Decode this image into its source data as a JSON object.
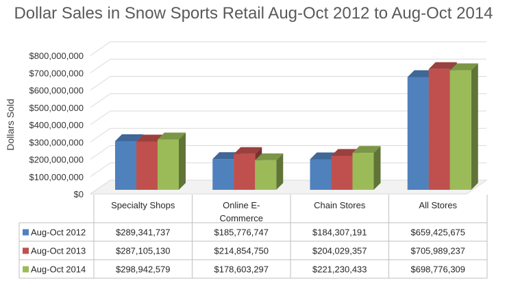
{
  "chart_data": {
    "type": "bar",
    "title": "Dollar Sales in Snow Sports Retail Aug-Oct 2012 to Aug-Oct 2014",
    "ylabel": "Dollars Sold",
    "xlabel": "",
    "ylim": [
      0,
      800000000
    ],
    "yticks": [
      {
        "value": 0,
        "label": "$0"
      },
      {
        "value": 100000000,
        "label": "$100,000,000"
      },
      {
        "value": 200000000,
        "label": "$200,000,000"
      },
      {
        "value": 300000000,
        "label": "$300,000,000"
      },
      {
        "value": 400000000,
        "label": "$400,000,000"
      },
      {
        "value": 500000000,
        "label": "$500,000,000"
      },
      {
        "value": 600000000,
        "label": "$600,000,000"
      },
      {
        "value": 700000000,
        "label": "$700,000,000"
      },
      {
        "value": 800000000,
        "label": "$800,000,000"
      }
    ],
    "grid": true,
    "legend": "data-table",
    "categories": [
      [
        "Specialty Shops"
      ],
      [
        "Online E-",
        "Commerce"
      ],
      [
        "Chain Stores"
      ],
      [
        "All Stores"
      ]
    ],
    "series": [
      {
        "name": "Aug-Oct 2012",
        "color": "#4f81bd",
        "values": [
          289341737,
          185776747,
          184307191,
          659425675
        ],
        "labels": [
          "$289,341,737",
          "$185,776,747",
          "$184,307,191",
          "$659,425,675"
        ]
      },
      {
        "name": "Aug-Oct 2013",
        "color": "#c0504d",
        "values": [
          287105130,
          214854750,
          204029357,
          705989237
        ],
        "labels": [
          "$287,105,130",
          "$214,854,750",
          "$204,029,357",
          "$705,989,237"
        ]
      },
      {
        "name": "Aug-Oct 2014",
        "color": "#9bbb59",
        "values": [
          298942579,
          178603297,
          221230433,
          698776309
        ],
        "labels": [
          "$298,942,579",
          "$178,603,297",
          "$221,230,433",
          "$698,776,309"
        ]
      }
    ]
  }
}
